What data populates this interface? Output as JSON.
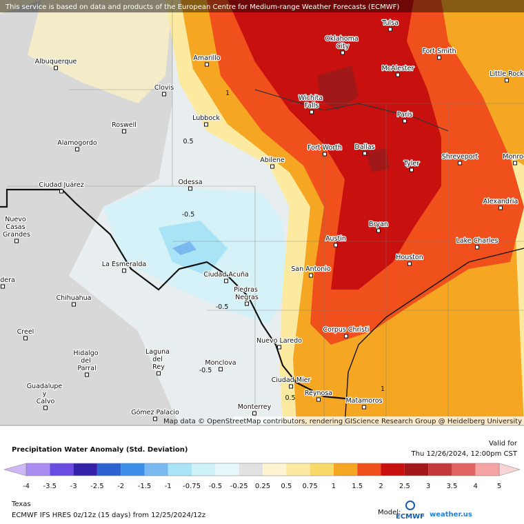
{
  "header": {
    "notice": "This service is based on data and products of the European Centre for Medium-range Weather Forecasts (ECMWF)"
  },
  "map": {
    "cities": [
      "Tulsa",
      "Oklahoma City",
      "Fort Smith",
      "Albuquerque",
      "Amarillo",
      "McAlester",
      "Little Rock",
      "Clovis",
      "Wichita Falls",
      "Paris",
      "Lubbock",
      "Roswell",
      "Alamogordo",
      "Fort Worth",
      "Dallas",
      "Tyler",
      "Shreveport",
      "Monroe",
      "Abilene",
      "Odessa",
      "Ciudad Juárez",
      "Alexandria",
      "Nuevo Casas Grandes",
      "Bryan",
      "Austin",
      "Lake Charles",
      "Houston",
      "La Esmeralda",
      "San Antonio",
      "Ciudad Acuña",
      "Piedras Negras",
      "Madera",
      "Chihuahua",
      "Creel",
      "Corpus Christi",
      "Nuevo Laredo",
      "Hidalgo del Parral",
      "Laguna del Rey",
      "Monclova",
      "Ciudad Mier",
      "Guadalupe y Calvo",
      "Reynosa",
      "Matamoros",
      "Gómez Palacio",
      "Monterrey"
    ],
    "contour_labels": [
      "1",
      "0.5",
      "-0.5",
      "-0.5",
      "-0.5",
      "0.5",
      "1"
    ],
    "attribution": "Map data © OpenStreetMap contributors, rendering GIScience Research Group @ Heidelberg University"
  },
  "footer": {
    "title": "Precipitation Water Anomaly (Std. Deviation)",
    "valid_label": "Valid for",
    "valid_time": "Thu 12/26/2024, 12:00pm CST",
    "region": "Texas",
    "model_run": "ECMWF IFS HRES 0z/12z (15 days) from 12/25/2024/12z",
    "model_label": "Model:",
    "model_logo": "ECMWF",
    "brand": "weather.us"
  },
  "legend": {
    "ticks": [
      "-4",
      "-3.5",
      "-3",
      "-2.5",
      "-2",
      "-1.5",
      "-1",
      "-0.75",
      "-0.5",
      "-0.25",
      "0.25",
      "0.5",
      "0.75",
      "1",
      "1.5",
      "2",
      "2.5",
      "3",
      "3.5",
      "4",
      "5"
    ],
    "colors": [
      "#a98cf0",
      "#6a4de0",
      "#3322a8",
      "#2a63d0",
      "#3d8ee6",
      "#7ab8f0",
      "#a8e4f5",
      "#cdf2f8",
      "#e6f8fa",
      "#e2e2e2",
      "#fff4d2",
      "#fbeaa0",
      "#f8da6a",
      "#f5a623",
      "#f0501c",
      "#c8100f",
      "#a01818",
      "#c23a3a",
      "#e06464",
      "#f4a2a2"
    ],
    "low_color": "#cdb8f5",
    "high_color": "#f8d4d4"
  }
}
